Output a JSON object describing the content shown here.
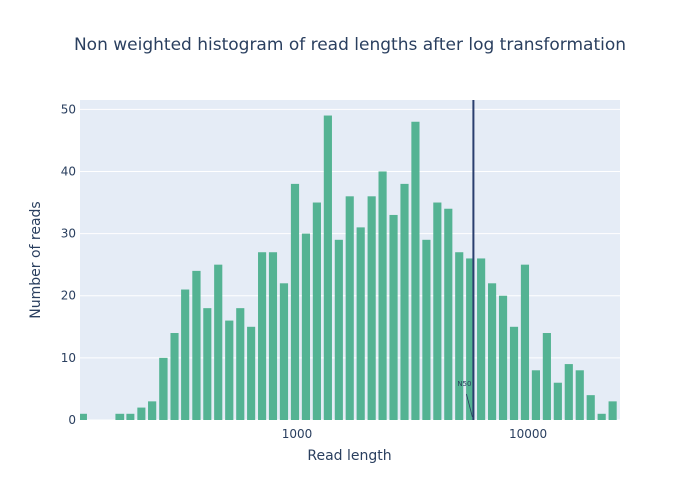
{
  "chart_data": {
    "type": "bar",
    "title": "Non weighted histogram of read lengths after log transformation",
    "xlabel": "Read length",
    "ylabel": "Number of reads",
    "x_scale": "log",
    "xlim": [
      115,
      25000
    ],
    "ylim": [
      0,
      51.5
    ],
    "x_ticks": [
      {
        "value": 1000,
        "label": "1000"
      },
      {
        "value": 10000,
        "label": "10000"
      }
    ],
    "y_ticks": [
      {
        "value": 0,
        "label": "0"
      },
      {
        "value": 10,
        "label": "10"
      },
      {
        "value": 20,
        "label": "20"
      },
      {
        "value": 30,
        "label": "30"
      },
      {
        "value": 40,
        "label": "40"
      },
      {
        "value": 50,
        "label": "50"
      }
    ],
    "bin_centers": [
      118,
      139,
      171,
      190,
      212,
      236,
      264,
      295,
      328,
      367,
      409,
      456,
      509,
      568,
      633,
      706,
      787,
      878,
      980,
      1093,
      1219,
      1360,
      1517,
      1691,
      1886,
      2104,
      2346,
      2617,
      2919,
      3255,
      3631,
      4049,
      4516,
      5036,
      5616,
      6264,
      6986,
      7793,
      8693,
      9696,
      10815,
      12063,
      13455,
      15008,
      16740,
      18672,
      20826,
      23230,
      25900
    ],
    "values": [
      1,
      0,
      1,
      1,
      2,
      3,
      10,
      14,
      21,
      24,
      18,
      25,
      16,
      18,
      15,
      27,
      27,
      22,
      38,
      30,
      35,
      49,
      29,
      36,
      31,
      36,
      40,
      33,
      38,
      48,
      29,
      35,
      34,
      27,
      26,
      26,
      22,
      20,
      15,
      25,
      8,
      14,
      6,
      9,
      8,
      4,
      1,
      3,
      0
    ],
    "bar_color": "#54b393",
    "plot_bg": "#e5ecf6",
    "grid": true,
    "vline": {
      "x": 5800,
      "color": "#2a3f6f"
    },
    "annotation": {
      "text": "N50",
      "x": 5800,
      "y": 0
    }
  }
}
